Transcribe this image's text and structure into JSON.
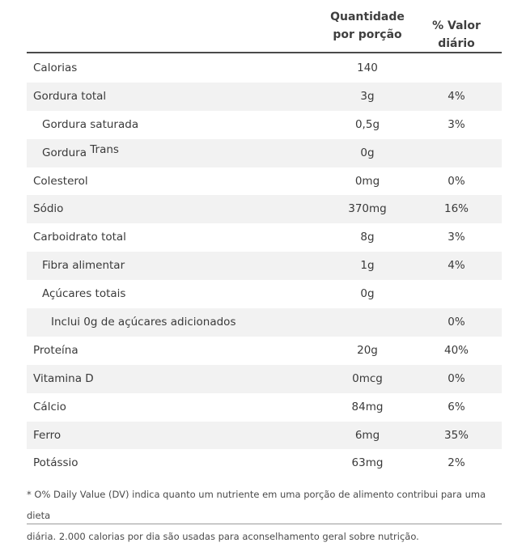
{
  "headers": {
    "quantity_line1": "Quantidade",
    "quantity_line2": "por porção",
    "daily_value": "% Valor diário"
  },
  "rows": [
    {
      "name": "Calorias",
      "qty": "140",
      "dv": ""
    },
    {
      "name": "Gordura total",
      "qty": "3g",
      "dv": "4%"
    },
    {
      "name": "Gordura saturada",
      "qty": "0,5g",
      "dv": "3%"
    },
    {
      "name_prefix": "Gordura",
      "name_suffix": "Trans",
      "qty": "0g",
      "dv": ""
    },
    {
      "name": "Colesterol",
      "qty": "0mg",
      "dv": "0%"
    },
    {
      "name": "Sódio",
      "qty": "370mg",
      "dv": "16%"
    },
    {
      "name": "Carboidrato total",
      "qty": "8g",
      "dv": "3%"
    },
    {
      "name": "Fibra alimentar",
      "qty": "1g",
      "dv": "4%"
    },
    {
      "name": "Açúcares totais",
      "qty": "0g",
      "dv": ""
    },
    {
      "name": "Inclui 0g de açúcares adicionados",
      "qty": "",
      "dv": "0%"
    },
    {
      "name": "Proteína",
      "qty": "20g",
      "dv": "40%"
    },
    {
      "name": "Vitamina D",
      "qty": "0mcg",
      "dv": "0%"
    },
    {
      "name": "Cálcio",
      "qty": "84mg",
      "dv": "6%"
    },
    {
      "name": "Ferro",
      "qty": "6mg",
      "dv": "35%"
    },
    {
      "name": "Potássio",
      "qty": "63mg",
      "dv": "2%"
    }
  ],
  "footnote": {
    "line1": "* O% Daily Value (DV) indica quanto um nutriente em uma porção de alimento contribui para uma dieta",
    "line2": "diária. 2.000 calorias por dia são usadas para aconselhamento geral sobre nutrição."
  }
}
